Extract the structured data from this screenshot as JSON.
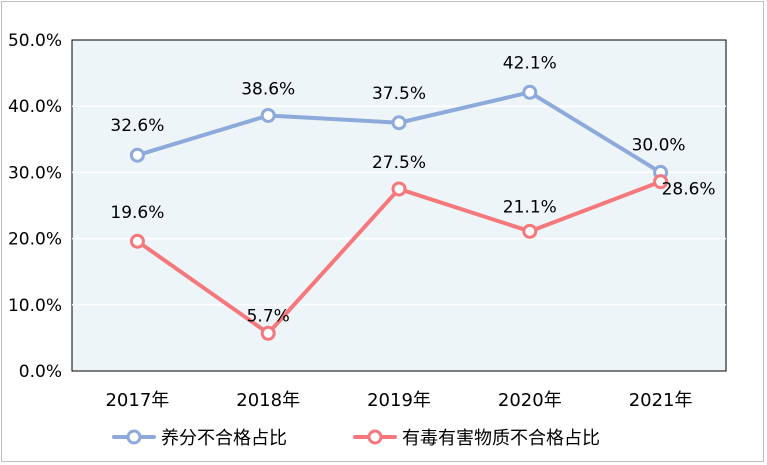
{
  "chart_data": {
    "type": "line",
    "categories": [
      "2017年",
      "2018年",
      "2019年",
      "2020年",
      "2021年"
    ],
    "y_ticks": [
      "0.0%",
      "10.0%",
      "20.0%",
      "30.0%",
      "40.0%",
      "50.0%"
    ],
    "ylim": [
      0,
      50
    ],
    "grid": true,
    "legend_position": "bottom",
    "plot_background": "#eef5f9",
    "series": [
      {
        "name": "养分不合格占比",
        "color": "#8eaadb",
        "values": [
          32.6,
          38.6,
          37.5,
          42.1,
          30.0
        ],
        "labels": [
          "32.6%",
          "38.6%",
          "37.5%",
          "42.1%",
          "30.0%"
        ]
      },
      {
        "name": "有毒有害物质不合格占比",
        "color": "#f4787c",
        "values": [
          19.6,
          5.7,
          27.5,
          21.1,
          28.6
        ],
        "labels": [
          "19.6%",
          "5.7%",
          "27.5%",
          "21.1%",
          "28.6%"
        ]
      }
    ]
  }
}
